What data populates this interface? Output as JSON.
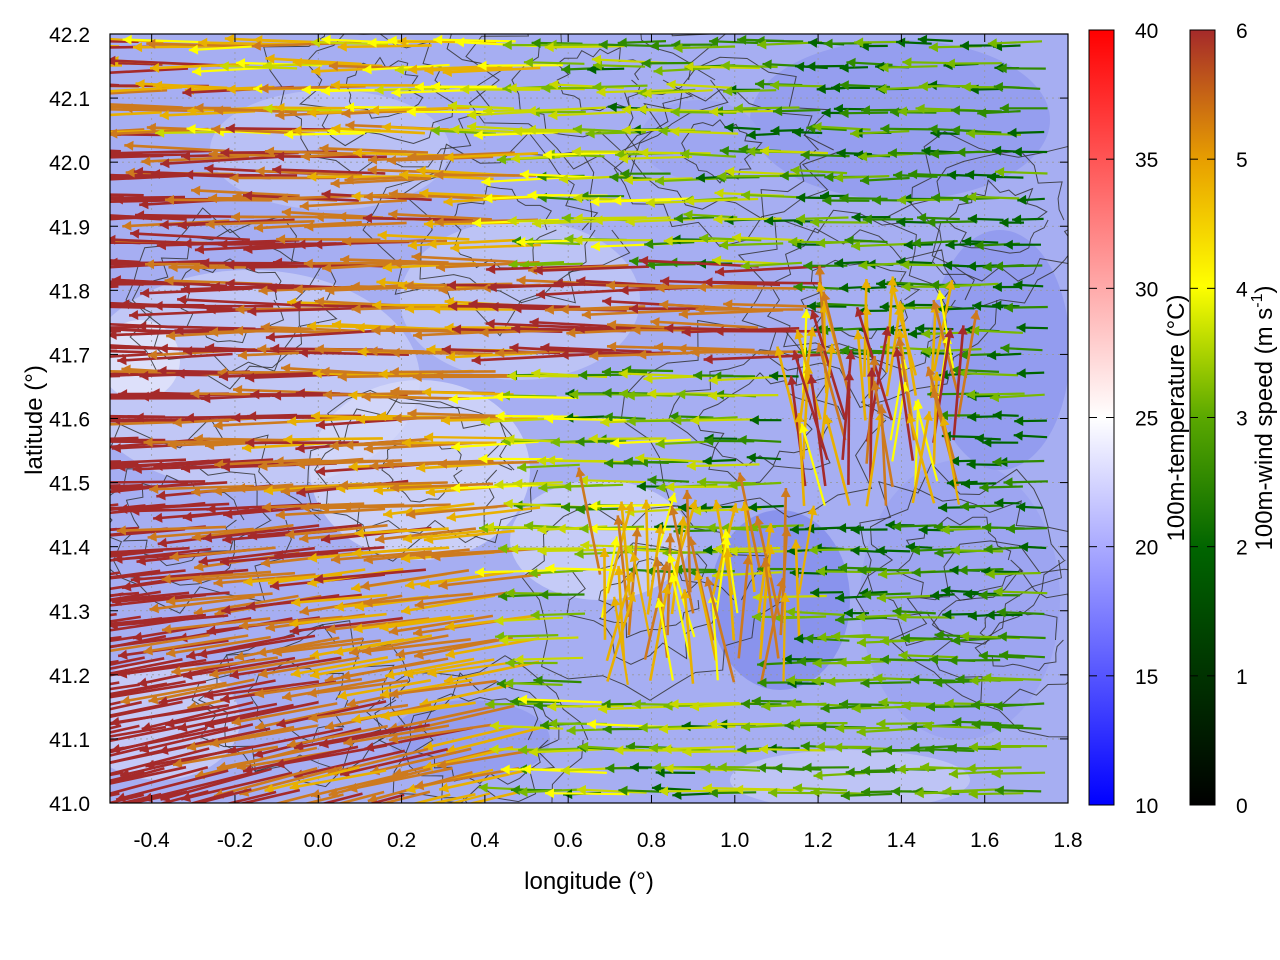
{
  "chart_data": {
    "type": "heatmap",
    "subtype": "map with wind vector arrows and contour lines",
    "xlabel": "longitude (°)",
    "ylabel": "latitude (°)",
    "xlim": [
      -0.5,
      1.8
    ],
    "ylim": [
      41.0,
      42.2
    ],
    "xticks": [
      "-0.4",
      "-0.2",
      "0.0",
      "0.2",
      "0.4",
      "0.6",
      "0.8",
      "1.0",
      "1.2",
      "1.4",
      "1.6",
      "1.8"
    ],
    "yticks": [
      "41.0",
      "41.1",
      "41.2",
      "41.3",
      "41.4",
      "41.5",
      "41.6",
      "41.7",
      "41.8",
      "41.9",
      "42.0",
      "42.1",
      "42.2"
    ],
    "grid": true,
    "temperature_colorbar": {
      "label": "100m-temperature (°C)",
      "range": [
        10,
        40
      ],
      "ticks": [
        "10",
        "15",
        "20",
        "25",
        "30",
        "35",
        "40"
      ],
      "colors": [
        "#0000ff",
        "#ffffff",
        "#ff0000"
      ]
    },
    "wind_colorbar": {
      "label_main": "100m-wind speed (m s",
      "label_sup": "-1",
      "label_end": ")",
      "range": [
        0,
        6
      ],
      "ticks": [
        "0",
        "1",
        "2",
        "3",
        "4",
        "5",
        "6"
      ],
      "colors": [
        "#000000",
        "#006400",
        "#5aa800",
        "#ffff00",
        "#e8a000",
        "#c8641e",
        "#a52a2a"
      ]
    },
    "temperature_field_range_C": [
      15,
      23
    ],
    "wind_field_description": "strong easterly flow (arrows pointing west, ~5-6 m/s) over western half; weak 1-3 m/s flow in east; northward flow near lon 1.1-1.5, lat 41.4-41.7"
  }
}
